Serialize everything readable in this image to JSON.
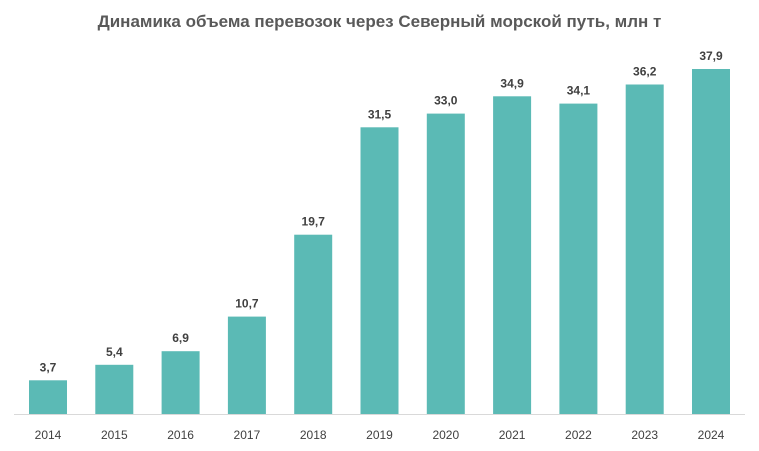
{
  "chart_data": {
    "type": "bar",
    "title": "Динамика объема перевозок через Северный морской путь, млн т",
    "categories": [
      "2014",
      "2015",
      "2016",
      "2017",
      "2018",
      "2019",
      "2020",
      "2021",
      "2022",
      "2023",
      "2024"
    ],
    "values": [
      3.7,
      5.4,
      6.9,
      10.7,
      19.7,
      31.5,
      33.0,
      34.9,
      34.1,
      36.2,
      37.9
    ],
    "data_labels": [
      "3,7",
      "5,4",
      "6,9",
      "10,7",
      "19,7",
      "31,5",
      "33,0",
      "34,9",
      "34,1",
      "36,2",
      "37,9"
    ],
    "xlabel": "",
    "ylabel": "",
    "ylim": [
      0,
      37.9
    ],
    "grid": false,
    "legend": "none",
    "bar_color": "#5bbab5",
    "axis_color": "#d9d9d9"
  }
}
